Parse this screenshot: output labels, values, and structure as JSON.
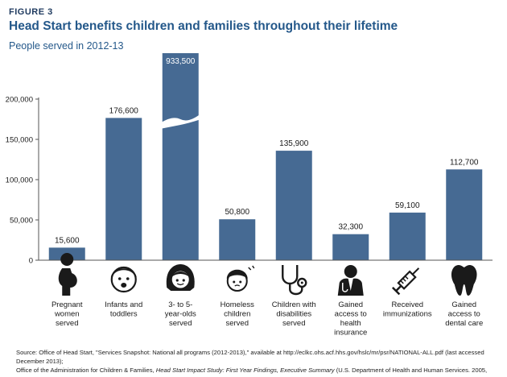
{
  "figure_label": "FIGURE 3",
  "title": "Head Start benefits children and families throughout their lifetime",
  "subtitle": "People served in 2012-13",
  "colors": {
    "bar": "#466a93",
    "axis": "#555555",
    "grid": "#d9d9d9",
    "title": "#24588a",
    "icon": "#1a1a1a"
  },
  "chart_data": {
    "type": "bar",
    "categories": [
      "Pregnant women served",
      "Infants and toddlers",
      "3- to 5-year-olds served",
      "Homeless children served",
      "Children with disabilities served",
      "Gained access to health insurance",
      "Received immunizations",
      "Gained access to dental care"
    ],
    "category_lines": [
      [
        "Pregnant",
        "women",
        "served"
      ],
      [
        "Infants and",
        "toddlers"
      ],
      [
        "3- to 5-",
        "year-olds",
        "served"
      ],
      [
        "Homeless",
        "children",
        "served"
      ],
      [
        "Children with",
        "disabilities",
        "served"
      ],
      [
        "Gained",
        "access to",
        "health",
        "insurance"
      ],
      [
        "Received",
        "immunizations"
      ],
      [
        "Gained",
        "access to",
        "dental care"
      ]
    ],
    "values": [
      15600,
      176600,
      933500,
      50800,
      135900,
      32300,
      59100,
      112700
    ],
    "value_labels": [
      "15,600",
      "176,600",
      "933,500",
      "50,800",
      "135,900",
      "32,300",
      "59,100",
      "112,700"
    ],
    "icons": [
      "pregnant-woman-icon",
      "infant-face-icon",
      "child-face-icon",
      "homeless-child-icon",
      "stethoscope-icon",
      "doctor-icon",
      "syringe-icon",
      "tooth-icon"
    ],
    "broken_bar_index": 2,
    "yticks": [
      0,
      50000,
      100000,
      150000,
      200000
    ],
    "ytick_labels": [
      "0",
      "50,000",
      "100,000",
      "150,000",
      "200,000"
    ],
    "ylim": [
      0,
      200000
    ],
    "grid": false,
    "legend": "none"
  },
  "source_lines": {
    "line1": "Source: Office of Head Start, \"Services Snapshot: National all programs (2012-2013),\" available at http://eclkc.ohs.acf.hhs.gov/hslc/mr/psr/NATIONAL-ALL.pdf (last accessed December 2013);",
    "line2a": "Office of the Administration for Children & Families, ",
    "line2b": "Head Start Impact Study: First Year Findings, Executive Summary",
    "line2c": " (U.S. Department of Health and Human Services. 2005,"
  }
}
